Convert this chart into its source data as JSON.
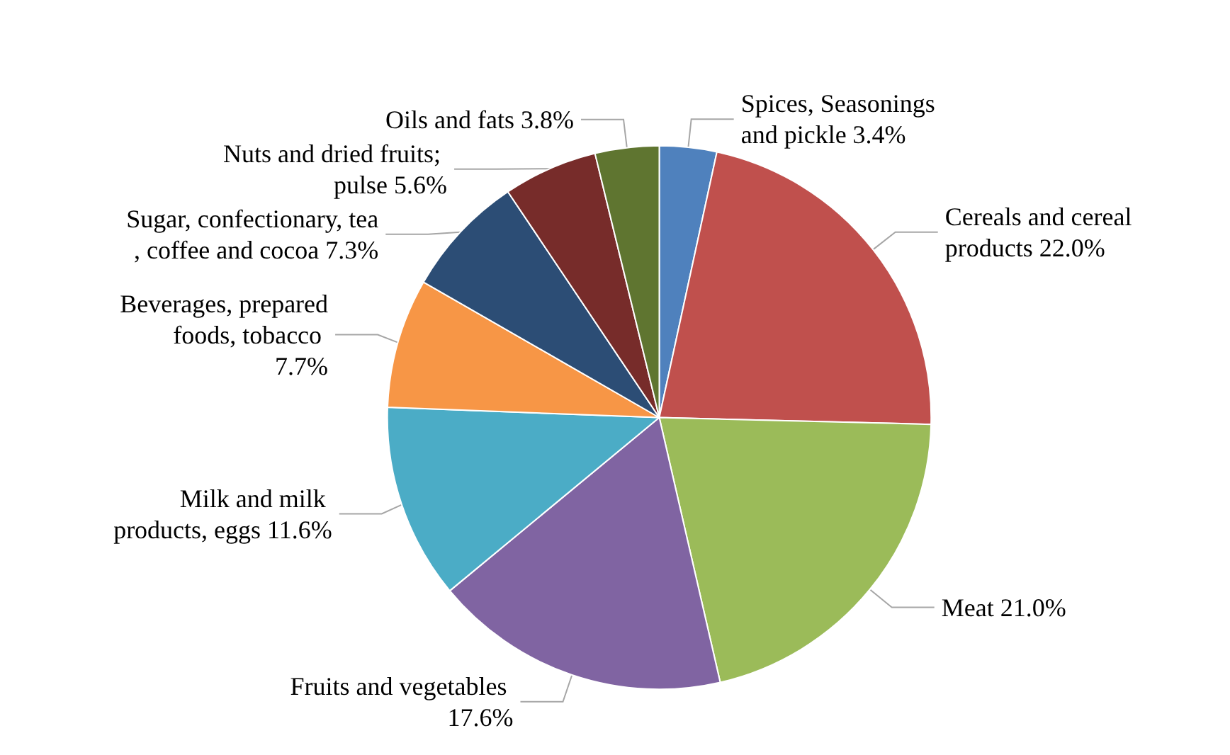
{
  "chart_data": {
    "type": "pie",
    "categories": [
      "Spices, Seasonings and pickle",
      "Cereals and cereal products",
      "Meat",
      "Fruits and vegetables",
      "Milk and milk products, eggs",
      "Beverages, prepared foods, tobacco",
      "Sugar, confectionary, tea, coffee and cocoa",
      "Nuts and dried fruits; pulse",
      "Oils and fats"
    ],
    "values": [
      3.4,
      22.0,
      21.0,
      17.6,
      11.6,
      7.7,
      7.3,
      5.6,
      3.8
    ],
    "value_labels": [
      "3.4%",
      "22.0%",
      "21.0%",
      "17.6%",
      "11.6%",
      "7.7%",
      "7.3%",
      "5.6%",
      "3.8%"
    ],
    "colors": [
      "#4f81bd",
      "#c0504d",
      "#9bbb59",
      "#8064a2",
      "#4bacc6",
      "#f79646",
      "#2c4d75",
      "#772c2a",
      "#5f7530"
    ],
    "legend": false
  }
}
